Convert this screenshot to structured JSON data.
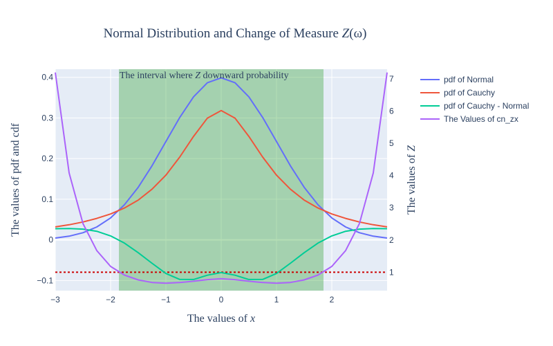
{
  "chart_data": {
    "type": "line",
    "title": "Normal Distribution and Change of Measure Z(ω)",
    "xlabel": "The values of x",
    "ylabel_left": "The values of pdf and cdf",
    "ylabel_right": "The values of Z",
    "annotation": "The interval where Z downward probability",
    "xlim": [
      -3,
      3
    ],
    "ylim_left": [
      -0.125,
      0.42
    ],
    "ylim_right": [
      0.4275,
      7.3
    ],
    "x_ticks": [
      -3,
      -2,
      -1,
      0,
      1,
      2
    ],
    "x_tick_labels": [
      "−3",
      "−2",
      "−1",
      "0",
      "1",
      "2"
    ],
    "y_left_ticks": [
      -0.1,
      0,
      0.1,
      0.2,
      0.3,
      0.4
    ],
    "y_left_tick_labels": [
      "−0.1",
      "0",
      "0.1",
      "0.2",
      "0.3",
      "0.4"
    ],
    "y_right_ticks": [
      1,
      2,
      3,
      4,
      5,
      6,
      7
    ],
    "y_right_tick_labels": [
      "1",
      "2",
      "3",
      "4",
      "5",
      "6",
      "7"
    ],
    "shaded_interval": [
      -1.85,
      1.85
    ],
    "shade_color": "#2ca02c",
    "reference_line": {
      "y_right": 1,
      "color": "#cc0000",
      "style": "dotted"
    },
    "grid": true,
    "legend_position": "top-right outside",
    "x": [
      -3.0,
      -2.75,
      -2.5,
      -2.25,
      -2.0,
      -1.75,
      -1.5,
      -1.25,
      -1.0,
      -0.75,
      -0.5,
      -0.25,
      0.0,
      0.25,
      0.5,
      0.75,
      1.0,
      1.25,
      1.5,
      1.75,
      2.0,
      2.25,
      2.5,
      2.75,
      3.0
    ],
    "series": [
      {
        "name": "pdf of Normal",
        "axis": "left",
        "color": "#636efa",
        "values": [
          0.0044,
          0.0091,
          0.0175,
          0.0317,
          0.054,
          0.0863,
          0.1295,
          0.1826,
          0.242,
          0.3011,
          0.3521,
          0.3867,
          0.3989,
          0.3867,
          0.3521,
          0.3011,
          0.242,
          0.1826,
          0.1295,
          0.0863,
          0.054,
          0.0317,
          0.0175,
          0.0091,
          0.0044
        ]
      },
      {
        "name": "pdf of Cauchy",
        "axis": "left",
        "color": "#ef553b",
        "values": [
          0.0318,
          0.0371,
          0.0439,
          0.0528,
          0.0637,
          0.0783,
          0.0979,
          0.1248,
          0.1592,
          0.2037,
          0.2546,
          0.2996,
          0.3183,
          0.2996,
          0.2546,
          0.2037,
          0.1592,
          0.1248,
          0.0979,
          0.0783,
          0.0637,
          0.0528,
          0.0439,
          0.0371,
          0.0318
        ]
      },
      {
        "name": "pdf of Cauchy - Normal",
        "axis": "left",
        "color": "#00cc96",
        "values": [
          0.0274,
          0.028,
          0.0264,
          0.0211,
          0.0097,
          -0.008,
          -0.0316,
          -0.0578,
          -0.0828,
          -0.0974,
          -0.0975,
          -0.0871,
          -0.0806,
          -0.0871,
          -0.0975,
          -0.0974,
          -0.0828,
          -0.0578,
          -0.0316,
          -0.008,
          0.0097,
          0.0211,
          0.0264,
          0.028,
          0.0274
        ]
      },
      {
        "name": "The Values of cn_zx",
        "axis": "right",
        "color": "#ab63fa",
        "values": [
          7.2,
          4.08,
          2.51,
          1.67,
          1.18,
          0.91,
          0.76,
          0.68,
          0.66,
          0.68,
          0.72,
          0.77,
          0.8,
          0.77,
          0.72,
          0.68,
          0.66,
          0.68,
          0.76,
          0.91,
          1.18,
          1.67,
          2.51,
          4.08,
          7.2
        ]
      }
    ]
  }
}
